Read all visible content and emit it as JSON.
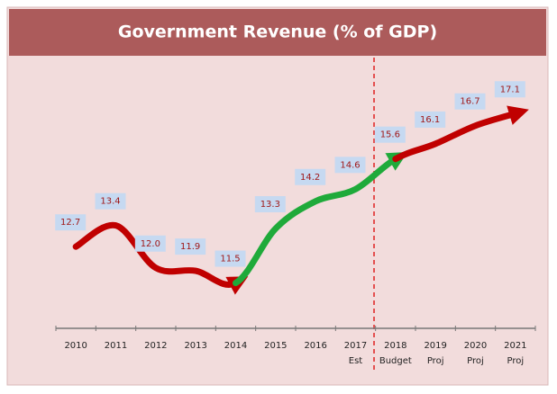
{
  "chart_data": {
    "type": "line",
    "title": "Government Revenue (% of GDP)",
    "categories": [
      "2010",
      "2011",
      "2012",
      "2013",
      "2014",
      "2015",
      "2016",
      "2017",
      "2018",
      "2019",
      "2020",
      "2021"
    ],
    "category_notes": [
      null,
      null,
      null,
      null,
      null,
      null,
      null,
      "Est",
      "Budget",
      "Proj",
      "Proj",
      "Proj"
    ],
    "values": [
      12.7,
      13.4,
      12.0,
      11.9,
      11.5,
      13.3,
      14.2,
      14.6,
      15.6,
      16.1,
      16.7,
      17.1
    ],
    "value_labels": [
      "12.7",
      "13.4",
      "12.0",
      "11.9",
      "11.5",
      "13.3",
      "14.2",
      "14.6",
      "15.6",
      "16.1",
      "16.7",
      "17.1"
    ],
    "segment_colors": [
      "#c00000",
      "#c00000",
      "#c00000",
      "#c00000",
      "#1faa3a",
      "#1faa3a",
      "#1faa3a",
      "#1faa3a",
      "#c00000",
      "#c00000",
      "#c00000"
    ],
    "ylim": [
      10,
      18
    ],
    "label_box_color": "#c6d9f1"
  }
}
